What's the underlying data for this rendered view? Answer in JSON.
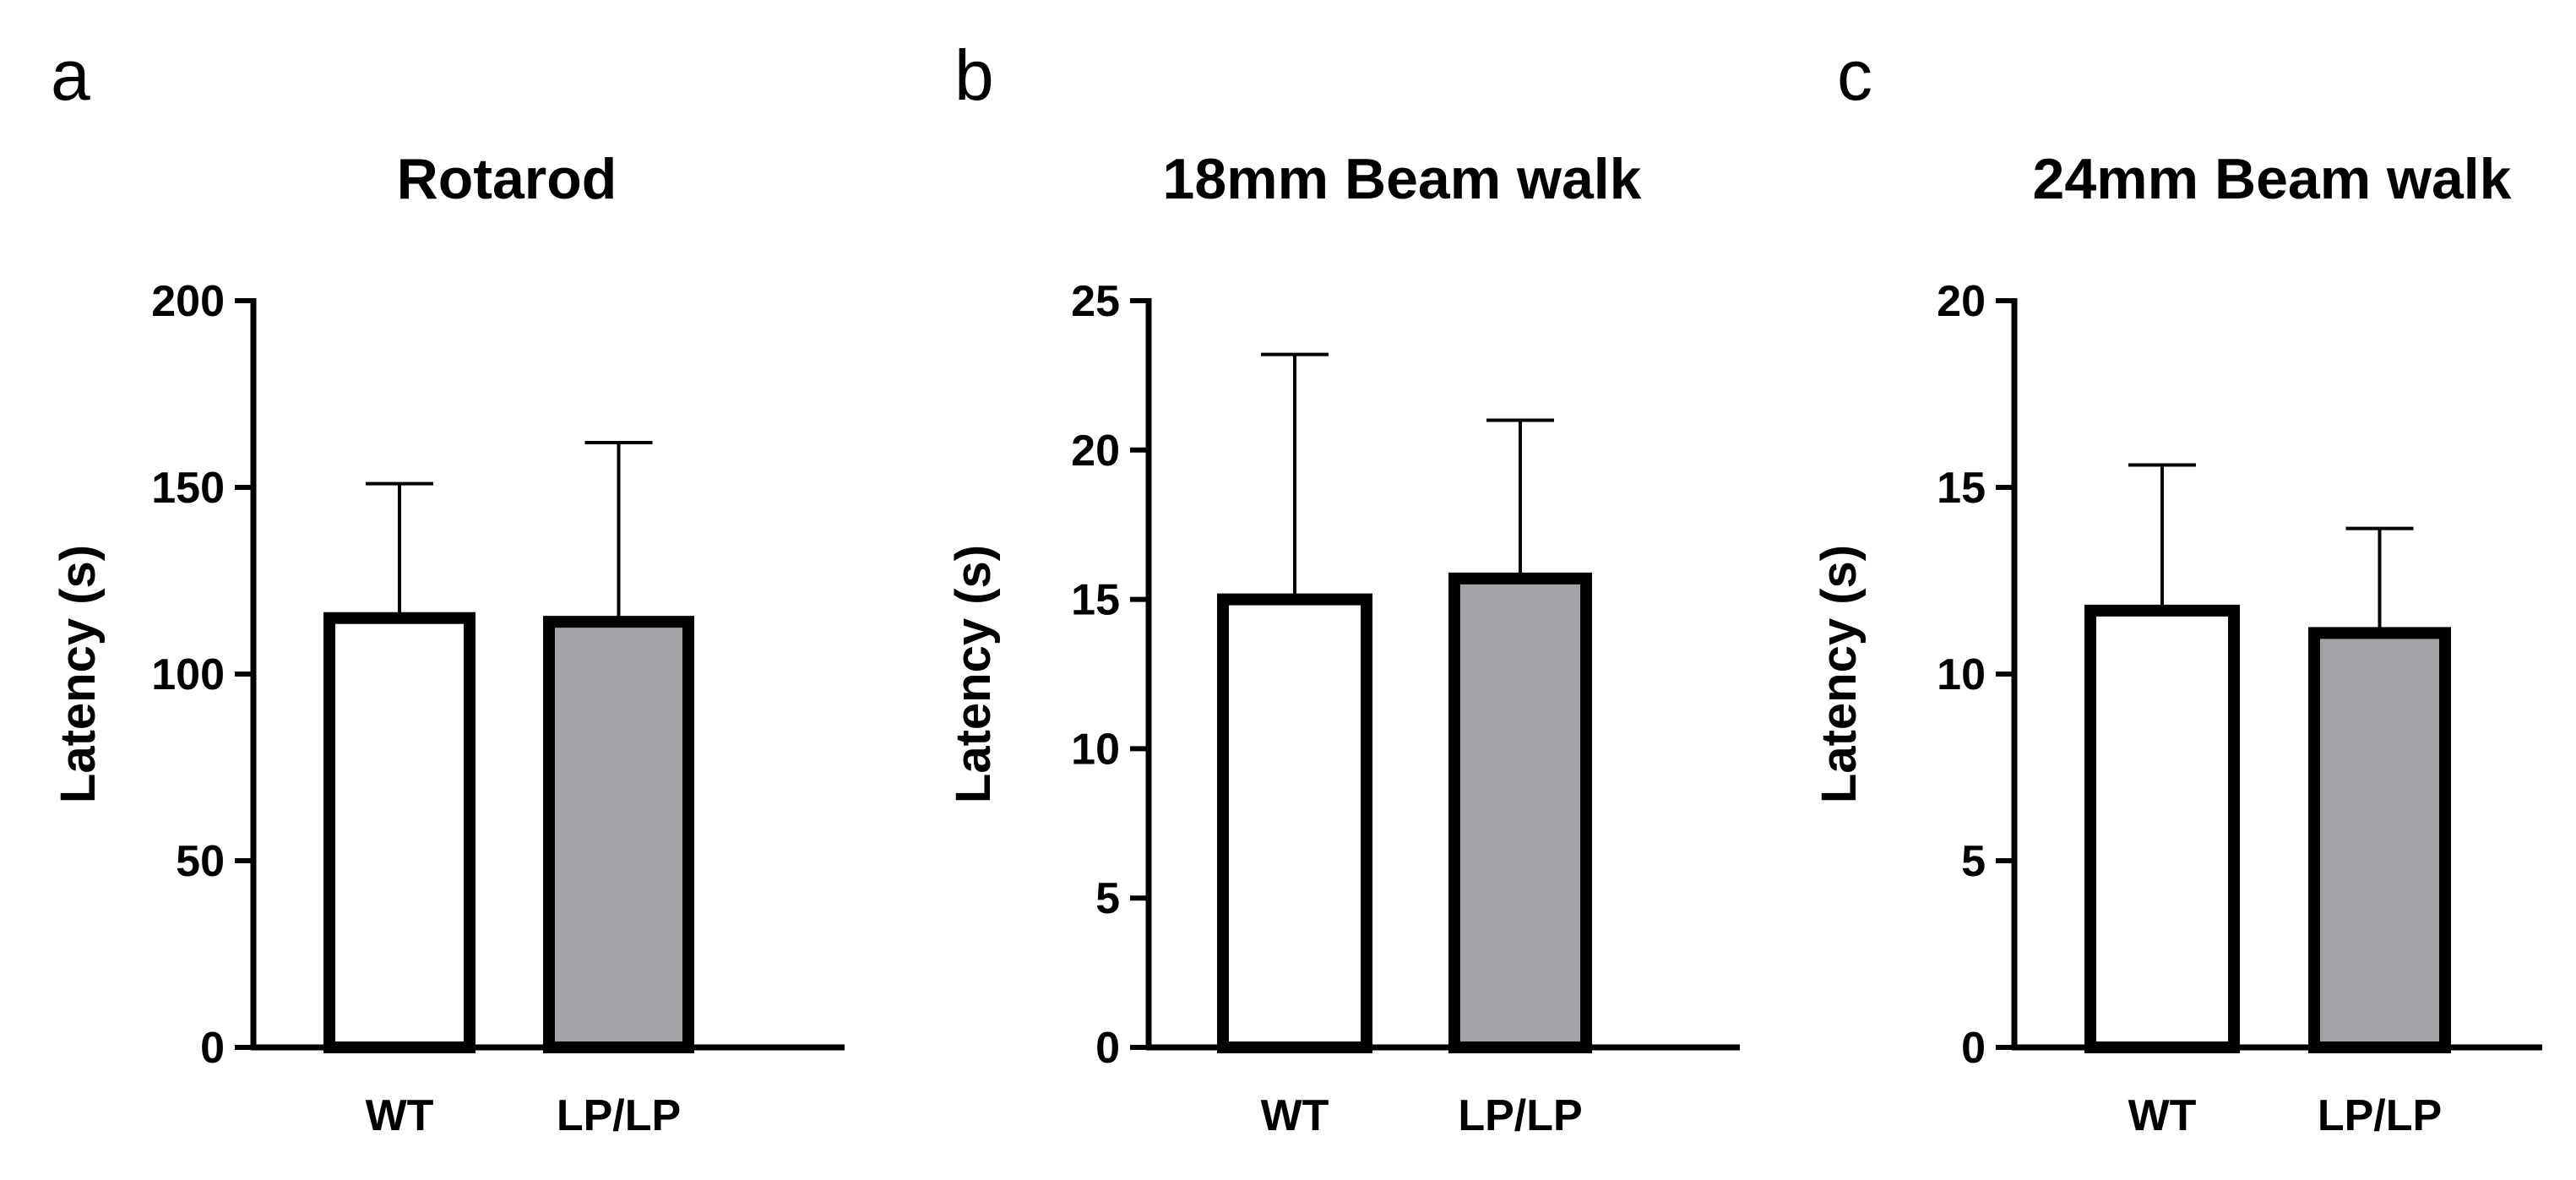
{
  "colors": {
    "wt_fill": "#ffffff",
    "lp_fill": "#a3a2a6",
    "stroke": "#000000"
  },
  "chart_data": [
    {
      "panel": "a",
      "type": "bar",
      "title": "Rotarod",
      "xlabel": "",
      "ylabel": "Latency (s)",
      "categories": [
        "WT",
        "LP/LP"
      ],
      "values": [
        115,
        114
      ],
      "error_upper": [
        151,
        162
      ],
      "ylim": [
        0,
        200
      ],
      "yticks": [
        0,
        50,
        100,
        150,
        200
      ],
      "ytick_labels": [
        "0",
        "50",
        "100",
        "150",
        "200"
      ],
      "grid": false
    },
    {
      "panel": "b",
      "type": "bar",
      "title": "18mm Beam walk",
      "xlabel": "",
      "ylabel": "Latency (s)",
      "categories": [
        "WT",
        "LP/LP"
      ],
      "values": [
        15.0,
        15.7
      ],
      "error_upper": [
        23.2,
        21.0
      ],
      "ylim": [
        0,
        25
      ],
      "yticks": [
        0,
        5,
        10,
        15,
        20,
        25
      ],
      "ytick_labels": [
        "0",
        "5",
        "10",
        "15",
        "20",
        "25"
      ],
      "grid": false
    },
    {
      "panel": "c",
      "type": "bar",
      "title": "24mm Beam walk",
      "xlabel": "",
      "ylabel": "Latency (s)",
      "categories": [
        "WT",
        "LP/LP"
      ],
      "values": [
        11.7,
        11.1
      ],
      "error_upper": [
        15.6,
        13.9
      ],
      "ylim": [
        0,
        20
      ],
      "yticks": [
        0,
        5,
        10,
        15,
        20
      ],
      "ytick_labels": [
        "0",
        "5",
        "10",
        "15",
        "20"
      ],
      "grid": false
    }
  ]
}
